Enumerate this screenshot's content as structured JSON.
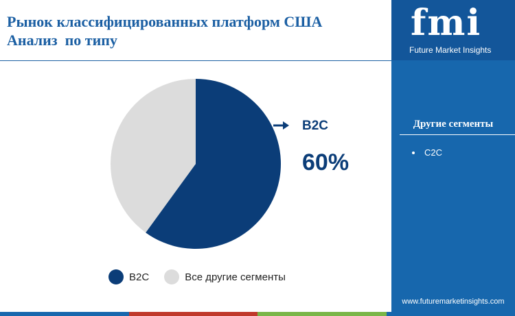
{
  "header": {
    "title_line1": "Рынок классифицированных платформ США",
    "title_line2": "Анализ  по типу"
  },
  "chart_data": {
    "type": "pie",
    "title": "Рынок классифицированных платформ США Анализ  по типу",
    "slices": [
      {
        "label": "B2C",
        "value": 60,
        "color": "#0b3d78"
      },
      {
        "label": "Все другие сегменты",
        "value": 40,
        "color": "#dcdcdc"
      }
    ],
    "callout": {
      "label": "B2C",
      "value": "60%"
    },
    "legend": {
      "position": "bottom"
    }
  },
  "sidebar": {
    "logo": "fmi",
    "logo_sub": "Future Market Insights",
    "heading": "Другие сегменты",
    "items": [
      "C2C"
    ],
    "website": "www.futuremarketinsights.com"
  },
  "colors": {
    "sidebar_bg": "#1767ad",
    "logo_bg": "#13569a",
    "title": "#1b5fa3",
    "bottom_bar": [
      "#1767ad",
      "#c0392b",
      "#7ab648",
      "#1767ad"
    ]
  }
}
